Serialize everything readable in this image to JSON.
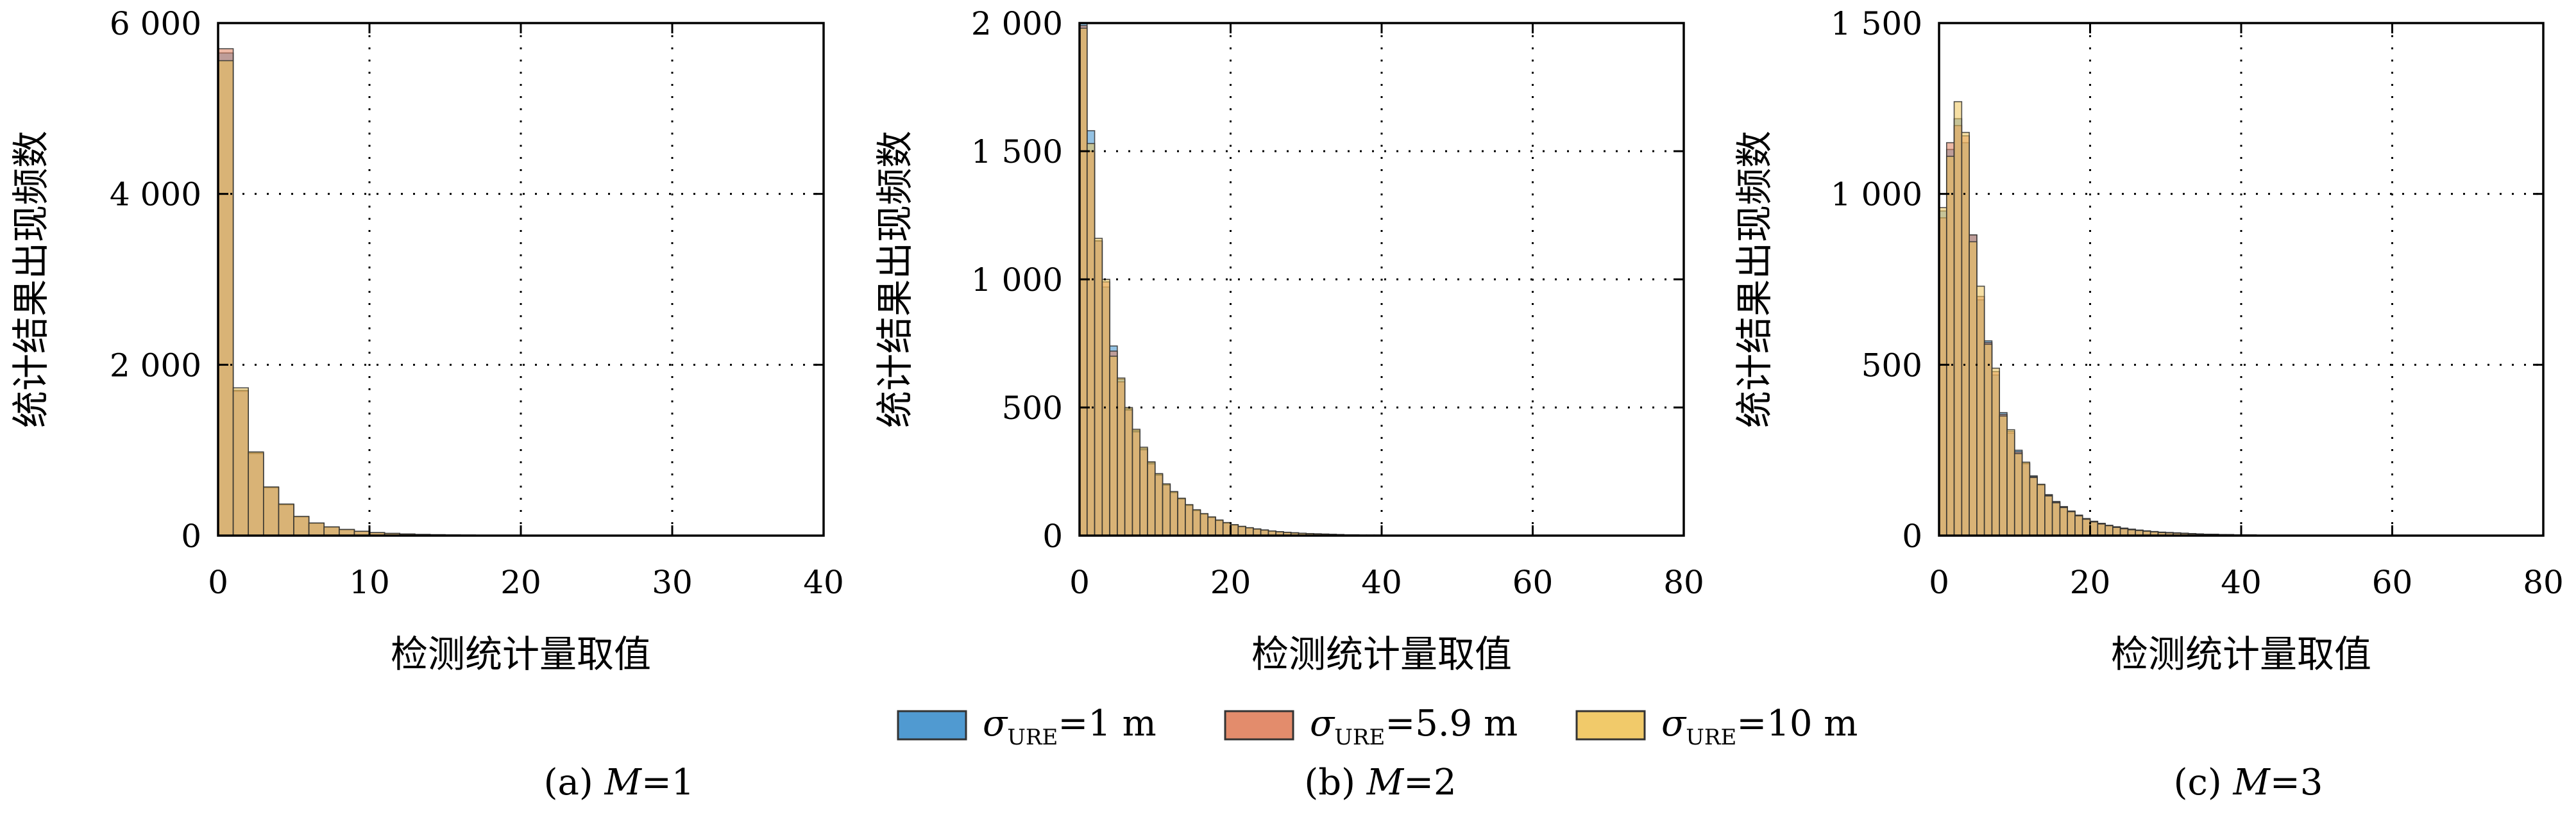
{
  "colors": {
    "series_1": "#3d8fcc",
    "series_2": "#e0805c",
    "series_3": "#efc45a",
    "bar_edge": "#333333",
    "grid": "#000000"
  },
  "legend": {
    "items": [
      {
        "symbol": "σ",
        "sub": "URE",
        "rest": "=1 m",
        "color_key": "series_1"
      },
      {
        "symbol": "σ",
        "sub": "URE",
        "rest": "=5.9 m",
        "color_key": "series_2"
      },
      {
        "symbol": "σ",
        "sub": "URE",
        "rest": "=10 m",
        "color_key": "series_3"
      }
    ]
  },
  "chart_data": [
    {
      "type": "bar",
      "caption_prefix": "(a) ",
      "caption_var": "M",
      "caption_suffix": "=1",
      "xlabel": "检测统计量取值",
      "ylabel": "统计结果出现频数",
      "xlim": [
        0,
        40
      ],
      "ylim": [
        0,
        6000
      ],
      "xticks": [
        0,
        10,
        20,
        30,
        40
      ],
      "xtick_labels": [
        "0",
        "10",
        "20",
        "30",
        "40"
      ],
      "yticks": [
        0,
        2000,
        4000,
        6000
      ],
      "ytick_labels": [
        "0",
        "2 000",
        "4 000",
        "6 000"
      ],
      "grid": true,
      "bin_start": 0,
      "bin_width": 1,
      "series": [
        {
          "name": "σURE=1 m",
          "values": [
            5650,
            1690,
            960,
            560,
            360,
            220,
            145,
            100,
            70,
            50,
            35,
            25,
            18,
            13,
            10,
            8,
            6,
            4,
            3,
            2,
            1,
            1,
            1,
            1,
            1,
            1,
            0,
            0,
            0,
            0,
            0,
            0,
            0,
            0,
            0,
            0,
            0,
            0,
            0,
            0
          ]
        },
        {
          "name": "σURE=5.9 m",
          "values": [
            5700,
            1700,
            970,
            565,
            365,
            222,
            146,
            101,
            71,
            50,
            35,
            25,
            18,
            13,
            10,
            8,
            6,
            4,
            3,
            2,
            1,
            1,
            1,
            1,
            1,
            1,
            0,
            0,
            0,
            0,
            0,
            0,
            0,
            0,
            0,
            0,
            0,
            0,
            0,
            0
          ]
        },
        {
          "name": "σURE=10 m",
          "values": [
            5560,
            1730,
            980,
            570,
            370,
            225,
            148,
            102,
            72,
            51,
            36,
            26,
            19,
            14,
            10,
            8,
            6,
            4,
            3,
            2,
            1,
            1,
            1,
            1,
            1,
            1,
            0,
            0,
            0,
            0,
            0,
            0,
            0,
            0,
            0,
            0,
            0,
            0,
            0,
            0
          ]
        }
      ]
    },
    {
      "type": "bar",
      "caption_prefix": "(b) ",
      "caption_var": "M",
      "caption_suffix": "=2",
      "xlabel": "检测统计量取值",
      "ylabel": "统计结果出现频数",
      "xlim": [
        0,
        80
      ],
      "ylim": [
        0,
        2000
      ],
      "xticks": [
        0,
        20,
        40,
        60,
        80
      ],
      "xtick_labels": [
        "0",
        "20",
        "40",
        "60",
        "80"
      ],
      "yticks": [
        0,
        500,
        1000,
        1500,
        2000
      ],
      "ytick_labels": [
        "0",
        "500",
        "1 000",
        "1 500",
        "2 000"
      ],
      "grid": true,
      "bin_start": 0,
      "bin_width": 1,
      "series": [
        {
          "name": "σURE=1 m",
          "values": [
            2000,
            1580,
            1150,
            970,
            740,
            610,
            495,
            410,
            340,
            285,
            240,
            200,
            170,
            145,
            120,
            100,
            85,
            72,
            60,
            50,
            42,
            36,
            30,
            26,
            22,
            18,
            15,
            13,
            11,
            9,
            8,
            7,
            6,
            5,
            4,
            3,
            3,
            2,
            2,
            2,
            1,
            1,
            1,
            1,
            1,
            0,
            0,
            0,
            0,
            0,
            0,
            0,
            0,
            0,
            0,
            0,
            0,
            0,
            0,
            0,
            0,
            0,
            0,
            0,
            0,
            0,
            0,
            0,
            0,
            0,
            0,
            0,
            0,
            0,
            0,
            0,
            0,
            0,
            0,
            0
          ]
        },
        {
          "name": "σURE=5.9 m",
          "values": [
            1990,
            1500,
            1150,
            990,
            720,
            600,
            490,
            405,
            335,
            280,
            236,
            197,
            168,
            143,
            118,
            98,
            84,
            71,
            59,
            49,
            41,
            35,
            30,
            25,
            21,
            18,
            15,
            12,
            10,
            9,
            7,
            6,
            5,
            4,
            4,
            3,
            3,
            2,
            2,
            2,
            1,
            1,
            1,
            1,
            1,
            0,
            0,
            0,
            0,
            0,
            0,
            0,
            0,
            0,
            0,
            0,
            0,
            0,
            0,
            0,
            0,
            0,
            0,
            0,
            0,
            0,
            0,
            0,
            0,
            0,
            0,
            0,
            0,
            0,
            0,
            0,
            0,
            0,
            0,
            0
          ]
        },
        {
          "name": "σURE=10 m",
          "values": [
            1980,
            1530,
            1160,
            1000,
            700,
            615,
            500,
            415,
            345,
            288,
            242,
            202,
            172,
            146,
            121,
            101,
            86,
            73,
            61,
            51,
            43,
            36,
            31,
            26,
            22,
            18,
            15,
            13,
            11,
            9,
            8,
            7,
            6,
            5,
            4,
            3,
            3,
            2,
            2,
            2,
            1,
            1,
            1,
            1,
            1,
            0,
            0,
            0,
            0,
            0,
            0,
            0,
            0,
            0,
            0,
            0,
            0,
            0,
            0,
            0,
            0,
            0,
            0,
            0,
            0,
            0,
            0,
            0,
            0,
            0,
            0,
            0,
            0,
            0,
            0,
            0,
            0,
            0,
            0,
            0
          ]
        }
      ]
    },
    {
      "type": "bar",
      "caption_prefix": "(c) ",
      "caption_var": "M",
      "caption_suffix": "=3",
      "xlabel": "检测统计量取值",
      "ylabel": "统计结果出现频数",
      "xlim": [
        0,
        80
      ],
      "ylim": [
        0,
        1500
      ],
      "xticks": [
        0,
        20,
        40,
        60,
        80
      ],
      "xtick_labels": [
        "0",
        "20",
        "40",
        "60",
        "80"
      ],
      "yticks": [
        0,
        500,
        1000,
        1500
      ],
      "ytick_labels": [
        "0",
        "500",
        "1 000",
        "1 500"
      ],
      "grid": true,
      "bin_start": 0,
      "bin_width": 1,
      "series": [
        {
          "name": "σURE=1 m",
          "values": [
            950,
            1130,
            1220,
            1150,
            880,
            690,
            570,
            470,
            360,
            300,
            250,
            210,
            175,
            150,
            120,
            100,
            85,
            72,
            60,
            50,
            42,
            36,
            30,
            26,
            22,
            19,
            16,
            14,
            12,
            10,
            9,
            8,
            7,
            6,
            5,
            4,
            4,
            3,
            3,
            2,
            2,
            2,
            1,
            1,
            1,
            1,
            1,
            0,
            0,
            0,
            0,
            0,
            0,
            0,
            0,
            0,
            0,
            0,
            0,
            0,
            0,
            0,
            0,
            0,
            0,
            0,
            0,
            0,
            0,
            0,
            0,
            0,
            0,
            0,
            0,
            0,
            0,
            0,
            0,
            0
          ]
        },
        {
          "name": "σURE=5.9 m",
          "values": [
            930,
            1150,
            1200,
            1170,
            880,
            700,
            565,
            480,
            355,
            305,
            245,
            212,
            172,
            148,
            118,
            98,
            84,
            71,
            59,
            49,
            41,
            35,
            30,
            25,
            21,
            18,
            16,
            13,
            11,
            10,
            9,
            8,
            7,
            6,
            5,
            4,
            4,
            3,
            3,
            2,
            2,
            2,
            1,
            1,
            1,
            1,
            1,
            0,
            0,
            0,
            0,
            0,
            0,
            0,
            0,
            0,
            0,
            0,
            0,
            0,
            0,
            0,
            0,
            0,
            0,
            0,
            0,
            0,
            0,
            0,
            0,
            0,
            0,
            0,
            0,
            0,
            0,
            0,
            0,
            0
          ]
        },
        {
          "name": "σURE=10 m",
          "values": [
            960,
            1110,
            1270,
            1180,
            860,
            730,
            560,
            490,
            350,
            310,
            240,
            215,
            170,
            150,
            116,
            96,
            82,
            70,
            58,
            48,
            40,
            34,
            29,
            24,
            20,
            17,
            15,
            13,
            11,
            9,
            8,
            7,
            6,
            5,
            4,
            4,
            3,
            3,
            2,
            2,
            2,
            1,
            1,
            1,
            1,
            1,
            0,
            0,
            0,
            0,
            0,
            0,
            0,
            0,
            0,
            0,
            0,
            0,
            0,
            0,
            0,
            0,
            0,
            0,
            0,
            0,
            0,
            0,
            0,
            0,
            0,
            0,
            0,
            0,
            0,
            0,
            0,
            0,
            0,
            0
          ]
        }
      ]
    }
  ]
}
